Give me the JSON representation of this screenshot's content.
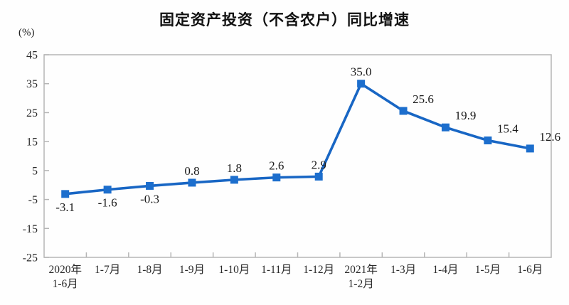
{
  "chart_data": {
    "type": "line",
    "title": "固定资产投资（不含农户）同比增速",
    "ylabel": "(%)",
    "xlabel": "",
    "categories": [
      "2020年\n1-6月",
      "1-7月",
      "1-8月",
      "1-9月",
      "1-10月",
      "1-11月",
      "1-12月",
      "2021年\n1-2月",
      "1-3月",
      "1-4月",
      "1-5月",
      "1-6月"
    ],
    "values": [
      -3.1,
      -1.6,
      -0.3,
      0.8,
      1.8,
      2.6,
      2.9,
      35.0,
      25.6,
      19.9,
      15.4,
      12.6
    ],
    "point_labels": [
      "-3.1",
      "-1.6",
      "-0.3",
      "0.8",
      "1.8",
      "2.6",
      "2.9",
      "35.0",
      "25.6",
      "19.9",
      "15.4",
      "12.6"
    ],
    "ylim": [
      -25,
      45
    ],
    "yticks": [
      45,
      35,
      25,
      15,
      5,
      -5,
      -15,
      -25
    ],
    "grid": false,
    "legend": "none",
    "marker": "square",
    "colors": {
      "line": "#1866c4",
      "marker": "#1c6ecd",
      "axis_frame": "#b5b5b5",
      "tick_label": "#2b2b2b",
      "data_label": "#1a1a1a",
      "title": "#111111",
      "background": "#fefefe"
    }
  }
}
